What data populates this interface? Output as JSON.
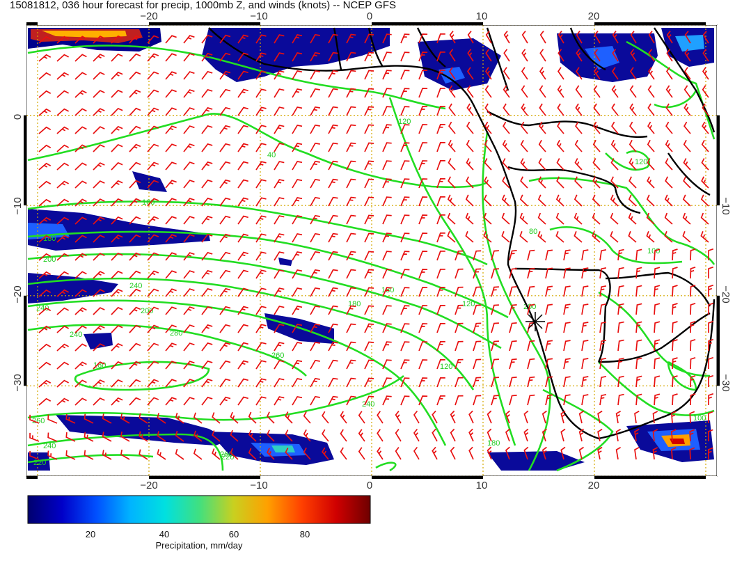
{
  "title": "15081812, 036 hour forecast for precip, 1000mb Z, and winds (knots) -- NCEP GFS",
  "axes": {
    "lon_ticks_top": [
      "−20",
      "−10",
      "0",
      "10",
      "20"
    ],
    "lon_ticks_bottom": [
      "−20",
      "−10",
      "0",
      "10",
      "20"
    ],
    "lat_ticks_left": [
      "0",
      "−10",
      "−20",
      "−30"
    ],
    "lat_ticks_right": [
      "−10",
      "−20",
      "−30"
    ],
    "lon_range": [
      -31,
      31
    ],
    "lat_range": [
      -40,
      10
    ],
    "grid": "dotted-yellow"
  },
  "colorbar": {
    "ticks": [
      "20",
      "40",
      "60",
      "80"
    ],
    "label": "Precipitation, mm/day",
    "colors": [
      "#00006e",
      "#0000c8",
      "#0050ff",
      "#00b4ff",
      "#00e0e0",
      "#40e080",
      "#c8d020",
      "#ffa000",
      "#ff4000",
      "#d00000",
      "#6e0000"
    ]
  },
  "contour_labels": [
    "120",
    "40",
    "160",
    "180",
    "200",
    "240",
    "240",
    "200",
    "240",
    "280",
    "260",
    "180",
    "180",
    "120",
    "260",
    "240",
    "220",
    "180",
    "260",
    "240",
    "220",
    "200",
    "180",
    "120",
    "100",
    "80",
    "100",
    "120"
  ],
  "colors": {
    "contour": "#22dd22",
    "barb": "#e81010",
    "coast": "#000000",
    "grid": "#d4a800"
  }
}
